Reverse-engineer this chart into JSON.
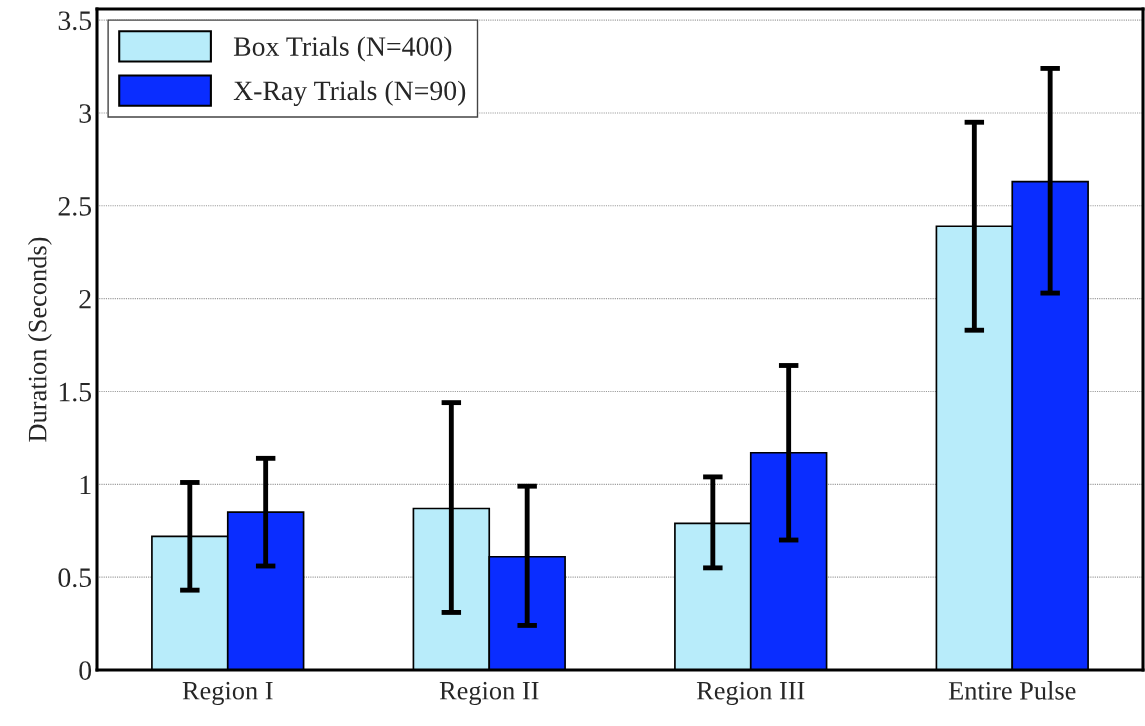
{
  "chart_data": {
    "type": "bar",
    "ylabel": "Duration (Seconds)",
    "categories": [
      "Region I",
      "Region II",
      "Region III",
      "Entire Pulse"
    ],
    "series": [
      {
        "name": "Box Trials (N=400)",
        "color": "#b8ecfa",
        "values": [
          0.72,
          0.87,
          0.79,
          2.39
        ],
        "errors": [
          [
            0.43,
            1.01
          ],
          [
            0.31,
            1.44
          ],
          [
            0.55,
            1.04
          ],
          [
            1.83,
            2.95
          ]
        ]
      },
      {
        "name": "X-Ray Trials (N=90)",
        "color": "#0a2dff",
        "values": [
          0.85,
          0.61,
          1.17,
          2.63
        ],
        "errors": [
          [
            0.56,
            1.14
          ],
          [
            0.24,
            0.99
          ],
          [
            0.7,
            1.64
          ],
          [
            2.03,
            3.24
          ]
        ]
      }
    ],
    "ylim": [
      0,
      3.56
    ],
    "yticks": [
      0,
      0.5,
      1,
      1.5,
      2,
      2.5,
      3,
      3.5
    ],
    "grid": "y",
    "legend": "top left"
  }
}
